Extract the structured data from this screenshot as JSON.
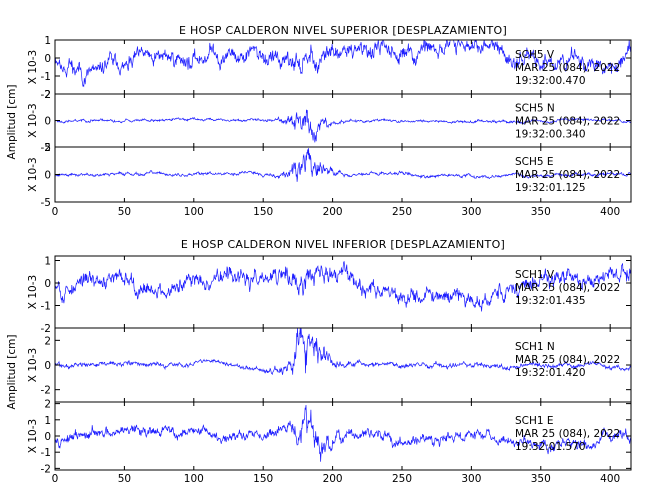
{
  "chart_data": [
    {
      "type": "line",
      "title": "E HOSP CALDERON NIVEL SUPERIOR [DESPLAZAMIENTO]",
      "ylabel": "Amplitud [cm]",
      "xlim": [
        0,
        415
      ],
      "x_ticks": [
        "0",
        "50",
        "100",
        "150",
        "200",
        "250",
        "300",
        "350",
        "400"
      ],
      "traces": [
        {
          "station": "SCH5",
          "component": "V",
          "date": "MAR 25 (084), 2022",
          "start_time": "19:32:00.470",
          "scale_label": "X 10-3",
          "ylim": [
            -2,
            1
          ],
          "y_ticks": [
            "1",
            "0",
            "-1",
            "-2"
          ],
          "amplitude": 0.7,
          "burst_gain": 1.4,
          "seed": 11
        },
        {
          "station": "SCH5",
          "component": "N",
          "date": "MAR 25 (084), 2022",
          "start_time": "19:32:00.340",
          "scale_label": "X 10-3",
          "ylim": [
            -2,
            2
          ],
          "y_ticks": [
            "2",
            "0",
            "-2"
          ],
          "amplitude": 0.15,
          "burst_gain": 9,
          "seed": 23
        },
        {
          "station": "SCH5",
          "component": "E",
          "date": "MAR 25 (084), 2022",
          "start_time": "19:32:01.125",
          "scale_label": "X 10-3",
          "ylim": [
            -5,
            5
          ],
          "y_ticks": [
            "5",
            "0",
            "-5"
          ],
          "amplitude": 0.45,
          "burst_gain": 8,
          "seed": 37
        }
      ]
    },
    {
      "type": "line",
      "title": "E HOSP CALDERON NIVEL INFERIOR [DESPLAZAMIENTO]",
      "ylabel": "Amplitud [cm]",
      "xlim": [
        0,
        415
      ],
      "x_ticks": [
        "0",
        "50",
        "100",
        "150",
        "200",
        "250",
        "300",
        "350",
        "400"
      ],
      "traces": [
        {
          "station": "SCH1",
          "component": "V",
          "date": "MAR 25 (084), 2022",
          "start_time": "19:32:01.435",
          "scale_label": "X 10-3",
          "ylim": [
            -2,
            1.2
          ],
          "y_ticks": [
            "1",
            "0",
            "-1",
            "-2"
          ],
          "amplitude": 0.55,
          "burst_gain": 1.8,
          "seed": 53
        },
        {
          "station": "SCH1",
          "component": "N",
          "date": "MAR 25 (084), 2022",
          "start_time": "19:32:01.420",
          "scale_label": "X 10-3",
          "ylim": [
            -3,
            3
          ],
          "y_ticks": [
            "2",
            "0",
            "-2"
          ],
          "amplitude": 0.3,
          "burst_gain": 8,
          "seed": 71
        },
        {
          "station": "SCH1",
          "component": "E",
          "date": "MAR 25 (084), 2022",
          "start_time": "19:32:01.570",
          "scale_label": "X 10-3",
          "ylim": [
            -2.1,
            2.1
          ],
          "y_ticks": [
            "2",
            "1",
            "0",
            "-1",
            "-2"
          ],
          "amplitude": 0.5,
          "burst_gain": 3.2,
          "seed": 97
        }
      ]
    }
  ],
  "colors": {
    "trace": "#1d1dff",
    "axes": "#000000",
    "background": "#ffffff"
  }
}
